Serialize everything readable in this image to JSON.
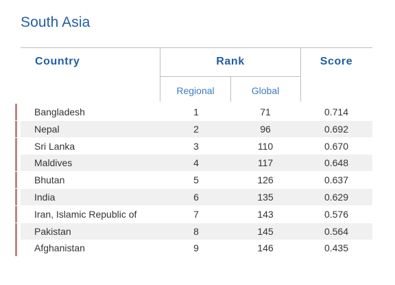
{
  "title": "South Asia",
  "headers": {
    "country": "Country",
    "rank": "Rank",
    "score": "Score",
    "regional": "Regional",
    "global": "Global"
  },
  "rows": [
    {
      "country": "Bangladesh",
      "regional": "1",
      "global": "71",
      "score": "0.714"
    },
    {
      "country": "Nepal",
      "regional": "2",
      "global": "96",
      "score": "0.692"
    },
    {
      "country": "Sri Lanka",
      "regional": "3",
      "global": "110",
      "score": "0.670"
    },
    {
      "country": "Maldives",
      "regional": "4",
      "global": "117",
      "score": "0.648"
    },
    {
      "country": "Bhutan",
      "regional": "5",
      "global": "126",
      "score": "0.637"
    },
    {
      "country": "India",
      "regional": "6",
      "global": "135",
      "score": "0.629"
    },
    {
      "country": "Iran, Islamic Republic of",
      "regional": "7",
      "global": "143",
      "score": "0.576"
    },
    {
      "country": "Pakistan",
      "regional": "8",
      "global": "145",
      "score": "0.564"
    },
    {
      "country": "Afghanistan",
      "regional": "9",
      "global": "146",
      "score": "0.435"
    }
  ],
  "colors": {
    "accent": "#1f5fa5",
    "subheader": "#3d7ac0",
    "row_marker": "#b88781",
    "row_shade": "#f0f0f0"
  }
}
